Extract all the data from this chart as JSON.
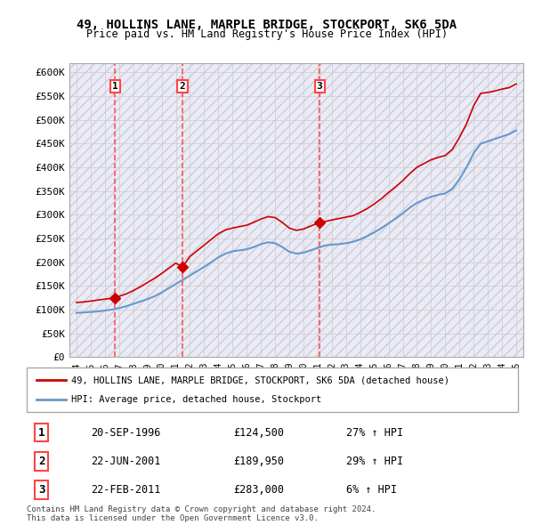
{
  "title": "49, HOLLINS LANE, MARPLE BRIDGE, STOCKPORT, SK6 5DA",
  "subtitle": "Price paid vs. HM Land Registry's House Price Index (HPI)",
  "legend_line1": "49, HOLLINS LANE, MARPLE BRIDGE, STOCKPORT, SK6 5DA (detached house)",
  "legend_line2": "HPI: Average price, detached house, Stockport",
  "footnote": "Contains HM Land Registry data © Crown copyright and database right 2024.\nThis data is licensed under the Open Government Licence v3.0.",
  "sales": [
    {
      "label": "1",
      "date": "20-SEP-1996",
      "price": 124500,
      "hpi_pct": "27%",
      "x": 1996.72
    },
    {
      "label": "2",
      "date": "22-JUN-2001",
      "price": 189950,
      "hpi_pct": "29%",
      "x": 2001.47
    },
    {
      "label": "3",
      "date": "22-FEB-2011",
      "price": 283000,
      "hpi_pct": "6%",
      "x": 2011.14
    }
  ],
  "ylim": [
    0,
    620000
  ],
  "xlim": [
    1993.5,
    2025.5
  ],
  "yticks": [
    0,
    50000,
    100000,
    150000,
    200000,
    250000,
    300000,
    350000,
    400000,
    450000,
    500000,
    550000,
    600000
  ],
  "ytick_labels": [
    "£0",
    "£50K",
    "£100K",
    "£150K",
    "£200K",
    "£250K",
    "£300K",
    "£350K",
    "£400K",
    "£450K",
    "£500K",
    "£550K",
    "£600K"
  ],
  "xticks": [
    1994,
    1995,
    1996,
    1997,
    1998,
    1999,
    2000,
    2001,
    2002,
    2003,
    2004,
    2005,
    2006,
    2007,
    2008,
    2009,
    2010,
    2011,
    2012,
    2013,
    2014,
    2015,
    2016,
    2017,
    2018,
    2019,
    2020,
    2021,
    2022,
    2023,
    2024,
    2025
  ],
  "red_color": "#cc0000",
  "blue_color": "#6699cc",
  "grid_color": "#cccccc",
  "sale_marker_color": "#cc0000",
  "dashed_color": "#ff4444",
  "background_hatch_color": "#e8e8f0",
  "hpi_x": [
    1994,
    1994.5,
    1995,
    1995.5,
    1996,
    1996.5,
    1997,
    1997.5,
    1998,
    1998.5,
    1999,
    1999.5,
    2000,
    2000.5,
    2001,
    2001.5,
    2002,
    2002.5,
    2003,
    2003.5,
    2004,
    2004.5,
    2005,
    2005.5,
    2006,
    2006.5,
    2007,
    2007.5,
    2008,
    2008.5,
    2009,
    2009.5,
    2010,
    2010.5,
    2011,
    2011.5,
    2012,
    2012.5,
    2013,
    2013.5,
    2014,
    2014.5,
    2015,
    2015.5,
    2016,
    2016.5,
    2017,
    2017.5,
    2018,
    2018.5,
    2019,
    2019.5,
    2020,
    2020.5,
    2021,
    2021.5,
    2022,
    2022.5,
    2023,
    2023.5,
    2024,
    2024.5,
    2025
  ],
  "hpi_y": [
    93000,
    94000,
    95000,
    96000,
    98000,
    100000,
    103000,
    107000,
    112000,
    117000,
    122000,
    128000,
    136000,
    145000,
    154000,
    163000,
    172000,
    181000,
    190000,
    200000,
    210000,
    218000,
    223000,
    225000,
    227000,
    232000,
    238000,
    242000,
    240000,
    232000,
    222000,
    218000,
    220000,
    225000,
    230000,
    235000,
    237000,
    238000,
    240000,
    243000,
    248000,
    255000,
    263000,
    272000,
    282000,
    292000,
    303000,
    315000,
    325000,
    332000,
    338000,
    342000,
    345000,
    355000,
    375000,
    400000,
    430000,
    450000,
    455000,
    460000,
    465000,
    470000,
    478000
  ],
  "red_x": [
    1994,
    1994.5,
    1995,
    1995.5,
    1996,
    1996.72,
    1997,
    1997.5,
    1998,
    1998.5,
    1999,
    1999.5,
    2000,
    2000.5,
    2001,
    2001.47,
    2002,
    2002.5,
    2003,
    2003.5,
    2004,
    2004.5,
    2005,
    2005.5,
    2006,
    2006.5,
    2007,
    2007.5,
    2008,
    2008.5,
    2009,
    2009.5,
    2010,
    2010.5,
    2011,
    2011.14,
    2012,
    2012.5,
    2013,
    2013.5,
    2014,
    2014.5,
    2015,
    2015.5,
    2016,
    2016.5,
    2017,
    2017.5,
    2018,
    2018.5,
    2019,
    2019.5,
    2020,
    2020.5,
    2021,
    2021.5,
    2022,
    2022.5,
    2023,
    2023.5,
    2024,
    2024.5,
    2025
  ],
  "red_y": [
    115000,
    116000,
    118000,
    120000,
    122000,
    124500,
    128000,
    133000,
    140000,
    148000,
    157000,
    166000,
    176000,
    187000,
    198000,
    189950,
    212000,
    224000,
    236000,
    248000,
    260000,
    268000,
    272000,
    275000,
    278000,
    284000,
    291000,
    296000,
    294000,
    284000,
    272000,
    267000,
    270000,
    276000,
    282000,
    283000,
    289000,
    292000,
    295000,
    298000,
    305000,
    313000,
    323000,
    334000,
    347000,
    359000,
    372000,
    387000,
    400000,
    408000,
    416000,
    421000,
    425000,
    438000,
    463000,
    492000,
    530000,
    556000,
    558000,
    561000,
    565000,
    568000,
    576000
  ]
}
